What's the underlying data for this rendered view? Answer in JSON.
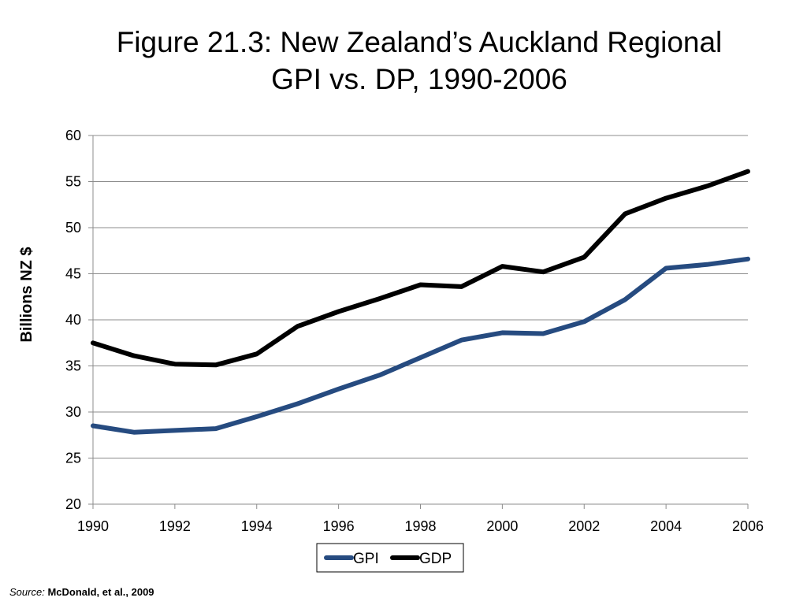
{
  "slide": {
    "title_line1": "Figure 21.3: New Zealand’s Auckland Regional",
    "title_line2": "GPI vs. DP, 1990-2006",
    "source_label": "Source:",
    "source_text": "McDonald, et al., 2009"
  },
  "chart_data": {
    "type": "line",
    "title": "Figure 21.3: New Zealand’s Auckland Regional GPI vs. DP, 1990-2006",
    "xlabel": "",
    "ylabel": "Billions NZ $",
    "x": [
      1990,
      1991,
      1992,
      1993,
      1994,
      1995,
      1996,
      1997,
      1998,
      1999,
      2000,
      2001,
      2002,
      2003,
      2004,
      2005,
      2006
    ],
    "xlim": [
      1990,
      2006
    ],
    "ylim": [
      20,
      60
    ],
    "x_ticks": [
      "1990",
      "1992",
      "1994",
      "1996",
      "1998",
      "2000",
      "2002",
      "2004",
      "2006"
    ],
    "y_ticks": [
      "20",
      "25",
      "30",
      "35",
      "40",
      "45",
      "50",
      "55",
      "60"
    ],
    "grid": "horizontal",
    "legend_position": "bottom",
    "series": [
      {
        "name": "GPI",
        "color": "#264b80",
        "values": [
          28.5,
          27.8,
          28.0,
          28.2,
          29.5,
          30.9,
          32.5,
          34.0,
          35.9,
          37.8,
          38.6,
          38.5,
          39.8,
          42.2,
          45.6,
          46.0,
          46.6
        ]
      },
      {
        "name": "GDP",
        "color": "#000000",
        "values": [
          37.5,
          36.1,
          35.2,
          35.1,
          36.3,
          39.3,
          40.9,
          42.3,
          43.8,
          43.6,
          45.8,
          45.2,
          46.8,
          51.5,
          53.2,
          54.5,
          56.1
        ]
      }
    ]
  }
}
